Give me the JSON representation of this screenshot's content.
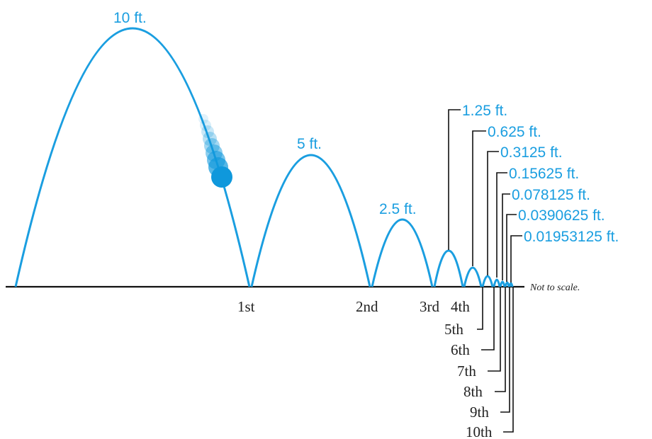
{
  "colors": {
    "arc": "#1a9ee0",
    "ball": "#0f98dc",
    "label": "#1a9ee0",
    "ground": "#111111",
    "leader": "#111111"
  },
  "note": "Not to scale.",
  "bounces": [
    {
      "height_label": "10 ft.",
      "bounce_label": "1st"
    },
    {
      "height_label": "5 ft.",
      "bounce_label": "2nd"
    },
    {
      "height_label": "2.5 ft.",
      "bounce_label": "3rd"
    },
    {
      "height_label": "1.25 ft.",
      "bounce_label": "4th"
    },
    {
      "height_label": "0.625 ft.",
      "bounce_label": "5th"
    },
    {
      "height_label": "0.3125 ft.",
      "bounce_label": "6th"
    },
    {
      "height_label": "0.15625 ft.",
      "bounce_label": "7th"
    },
    {
      "height_label": "0.078125 ft.",
      "bounce_label": "8th"
    },
    {
      "height_label": "0.0390625 ft.",
      "bounce_label": "9th"
    },
    {
      "height_label": "0.01953125 ft.",
      "bounce_label": "10th"
    }
  ]
}
